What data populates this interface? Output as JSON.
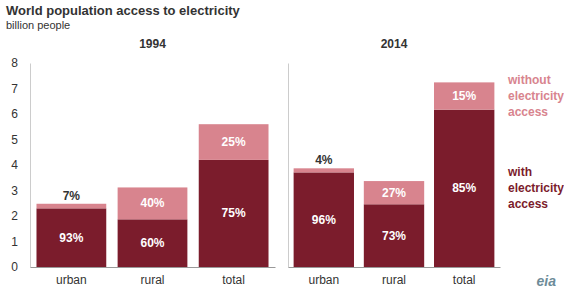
{
  "title": "World population access to electricity",
  "subtitle": "billion people",
  "logo": "eia",
  "chart_data": [
    {
      "type": "bar",
      "stacked": true,
      "title": "1994",
      "categories": [
        "urban",
        "rural",
        "total"
      ],
      "ylim": [
        0,
        8
      ],
      "yticks": [
        0,
        1,
        2,
        3,
        4,
        5,
        6,
        7,
        8
      ],
      "series": [
        {
          "name": "with electricity access",
          "color": "#7b1c2c",
          "values": [
            2.3,
            1.87,
            4.2
          ],
          "shares": [
            93,
            60,
            75
          ],
          "share_labels": [
            "93%",
            "60%",
            "75%"
          ]
        },
        {
          "name": "without electricity access",
          "color": "#d8848e",
          "values": [
            0.18,
            1.25,
            1.4
          ],
          "shares": [
            7,
            40,
            25
          ],
          "share_labels": [
            "7%",
            "40%",
            "25%"
          ]
        }
      ]
    },
    {
      "type": "bar",
      "stacked": true,
      "title": "2014",
      "categories": [
        "urban",
        "rural",
        "total"
      ],
      "ylim": [
        0,
        8
      ],
      "yticks": [
        0,
        1,
        2,
        3,
        4,
        5,
        6,
        7,
        8
      ],
      "tick_labels": "x",
      "legend": "right",
      "series": [
        {
          "name": "with electricity access",
          "color": "#7b1c2c",
          "values": [
            3.71,
            2.46,
            6.17
          ],
          "shares": [
            96,
            73,
            85
          ],
          "share_labels": [
            "96%",
            "73%",
            "85%"
          ]
        },
        {
          "name": "without electricity access",
          "color": "#d8848e",
          "values": [
            0.16,
            0.91,
            1.07
          ],
          "shares": [
            4,
            27,
            15
          ],
          "share_labels": [
            "4%",
            "27%",
            "15%"
          ]
        }
      ]
    }
  ]
}
